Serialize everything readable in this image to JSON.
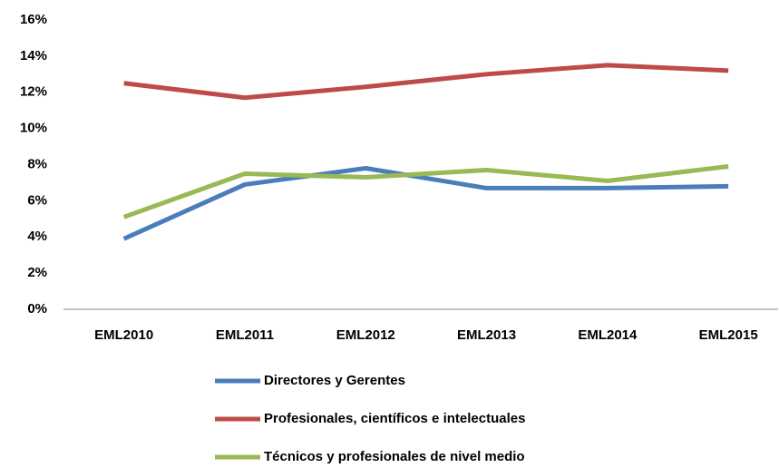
{
  "chart_data": {
    "type": "line",
    "categories": [
      "EML2010",
      "EML2011",
      "EML2012",
      "EML2013",
      "EML2014",
      "EML2015"
    ],
    "series": [
      {
        "name": "Directores y Gerentes",
        "color": "#4a7ebb",
        "values": [
          3.9,
          6.9,
          7.8,
          6.7,
          6.7,
          6.8
        ]
      },
      {
        "name": "Profesionales, científicos e intelectuales",
        "color": "#be4b48",
        "values": [
          12.5,
          11.7,
          12.3,
          13.0,
          13.5,
          13.2
        ]
      },
      {
        "name": "Técnicos y profesionales de nivel medio",
        "color": "#98b954",
        "values": [
          5.1,
          7.5,
          7.3,
          7.7,
          7.1,
          7.9
        ]
      }
    ],
    "ylim": [
      0,
      16
    ],
    "yticks": [
      {
        "value": 0,
        "label": "0%"
      },
      {
        "value": 2,
        "label": "2%"
      },
      {
        "value": 4,
        "label": "4%"
      },
      {
        "value": 6,
        "label": "6%"
      },
      {
        "value": 8,
        "label": "8%"
      },
      {
        "value": 10,
        "label": "10%"
      },
      {
        "value": 12,
        "label": "12%"
      },
      {
        "value": 14,
        "label": "14%"
      },
      {
        "value": 16,
        "label": "16%"
      }
    ],
    "grid": false,
    "legend": "bottom"
  }
}
